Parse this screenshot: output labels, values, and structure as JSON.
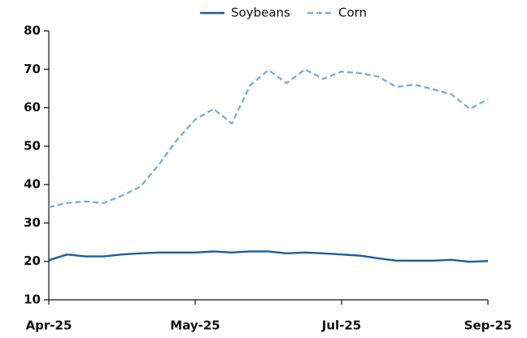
{
  "chart_data": {
    "type": "line",
    "categories": [
      "Apr-25",
      null,
      null,
      null,
      null,
      null,
      null,
      null,
      "May-25",
      null,
      null,
      null,
      null,
      null,
      null,
      null,
      "Jul-25",
      null,
      null,
      null,
      null,
      null,
      null,
      null,
      "Sep-25"
    ],
    "series": [
      {
        "name": "Soybeans",
        "color": "#1a5fa0",
        "linestyle": "solid",
        "values": [
          20.3,
          21.8,
          21.3,
          21.3,
          21.8,
          22.1,
          22.3,
          22.3,
          22.3,
          22.6,
          22.3,
          22.6,
          22.6,
          22.1,
          22.3,
          22.1,
          21.8,
          21.5,
          20.8,
          20.2,
          20.2,
          20.2,
          20.4,
          19.9,
          20.1
        ]
      },
      {
        "name": "Corn",
        "color": "#7bafd9",
        "linestyle": "dashed",
        "values": [
          34.1,
          35.2,
          35.6,
          35.2,
          37.1,
          39.4,
          45.1,
          51.6,
          56.9,
          59.7,
          55.9,
          65.8,
          69.8,
          66.4,
          70.0,
          67.5,
          69.4,
          69.0,
          68.1,
          65.4,
          66.0,
          64.8,
          63.5,
          59.7,
          62.2
        ]
      }
    ],
    "ylim": [
      10,
      80
    ],
    "yticks": [
      10,
      20,
      30,
      40,
      50,
      60,
      70,
      80
    ],
    "legend": "top"
  }
}
